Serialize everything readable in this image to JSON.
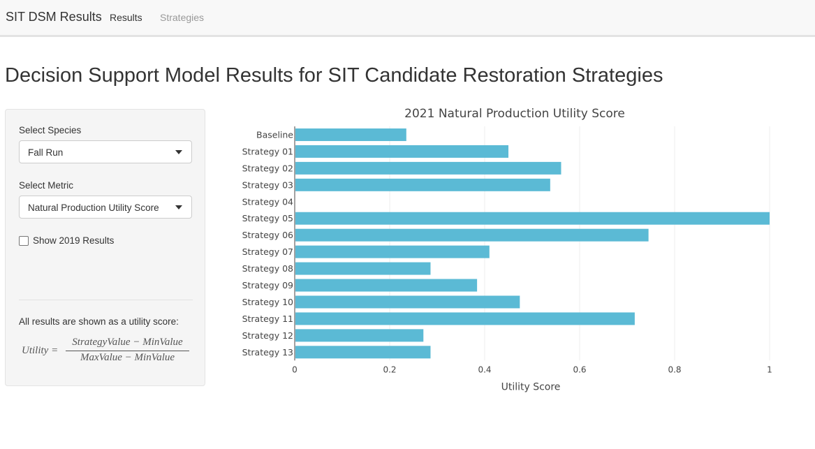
{
  "navbar": {
    "brand": "SIT DSM Results",
    "tabs": [
      {
        "label": "Results",
        "active": true
      },
      {
        "label": "Strategies",
        "active": false
      }
    ]
  },
  "page": {
    "title": "Decision Support Model Results for SIT Candidate Restoration Strategies"
  },
  "sidebar": {
    "species": {
      "label": "Select Species",
      "value": "Fall Run"
    },
    "metric": {
      "label": "Select Metric",
      "value": "Natural Production Utility Score"
    },
    "show_2019": {
      "label": "Show 2019 Results",
      "checked": false
    },
    "note": "All results are shown as a utility score:",
    "formula": {
      "lhs": "Utility =",
      "numerator": "StrategyValue − MinValue",
      "denominator": "MaxValue − MinValue"
    }
  },
  "chart_data": {
    "type": "bar",
    "orientation": "horizontal",
    "title": "2021 Natural Production Utility Score",
    "xlabel": "Utility Score",
    "ylabel": "",
    "xlim": [
      0,
      1
    ],
    "xticks": [
      "0",
      "0.2",
      "0.4",
      "0.6",
      "0.8",
      "1"
    ],
    "grid": true,
    "bar_color": "#5bbad5",
    "categories": [
      "Baseline",
      "Strategy 01",
      "Strategy 02",
      "Strategy 03",
      "Strategy 04",
      "Strategy 05",
      "Strategy 06",
      "Strategy 07",
      "Strategy 08",
      "Strategy 09",
      "Strategy 10",
      "Strategy 11",
      "Strategy 12",
      "Strategy 13"
    ],
    "values": [
      0.235,
      0.45,
      0.561,
      0.538,
      0,
      1,
      0.745,
      0.41,
      0.286,
      0.384,
      0.474,
      0.716,
      0.271,
      0.286
    ]
  }
}
